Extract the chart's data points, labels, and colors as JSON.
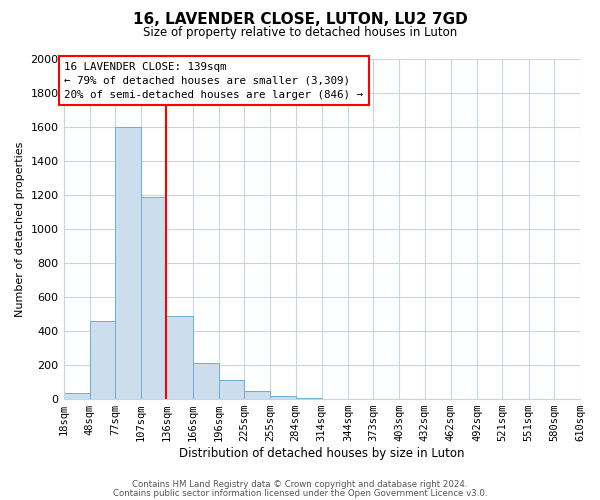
{
  "title": "16, LAVENDER CLOSE, LUTON, LU2 7GD",
  "subtitle": "Size of property relative to detached houses in Luton",
  "xlabel": "Distribution of detached houses by size in Luton",
  "ylabel": "Number of detached properties",
  "bar_color": "#ccdded",
  "bar_edge_color": "#6aafd6",
  "bin_edges": [
    18,
    48,
    77,
    107,
    136,
    166,
    196,
    225,
    255,
    284,
    314,
    344,
    373,
    403,
    432,
    462,
    492,
    521,
    551,
    580,
    610
  ],
  "bin_labels": [
    "18sqm",
    "48sqm",
    "77sqm",
    "107sqm",
    "136sqm",
    "166sqm",
    "196sqm",
    "225sqm",
    "255sqm",
    "284sqm",
    "314sqm",
    "344sqm",
    "373sqm",
    "403sqm",
    "432sqm",
    "462sqm",
    "492sqm",
    "521sqm",
    "551sqm",
    "580sqm",
    "610sqm"
  ],
  "counts": [
    35,
    460,
    1600,
    1190,
    490,
    210,
    115,
    45,
    20,
    5,
    0,
    0,
    0,
    0,
    0,
    0,
    0,
    0,
    0,
    0
  ],
  "ylim": [
    0,
    2000
  ],
  "yticks": [
    0,
    200,
    400,
    600,
    800,
    1000,
    1200,
    1400,
    1600,
    1800,
    2000
  ],
  "red_line_x": 136,
  "annotation_title": "16 LAVENDER CLOSE: 139sqm",
  "annotation_line1": "← 79% of detached houses are smaller (3,309)",
  "annotation_line2": "20% of semi-detached houses are larger (846) →",
  "footnote1": "Contains HM Land Registry data © Crown copyright and database right 2024.",
  "footnote2": "Contains public sector information licensed under the Open Government Licence v3.0.",
  "background_color": "#ffffff",
  "grid_color": "#c8d4de"
}
